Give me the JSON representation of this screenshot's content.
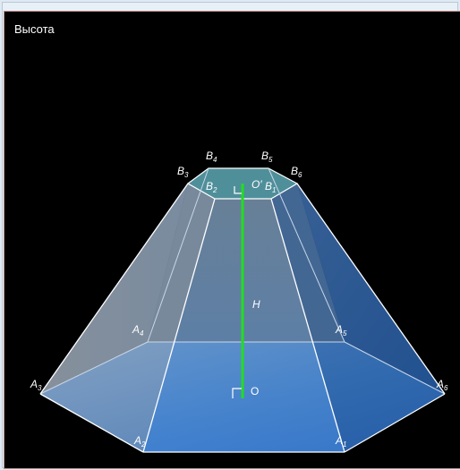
{
  "panel": {
    "title": "Высота"
  },
  "labels": {
    "B4": {
      "base": "B",
      "sub": "4"
    },
    "B5": {
      "base": "B",
      "sub": "5"
    },
    "B3": {
      "base": "B",
      "sub": "3"
    },
    "B6": {
      "base": "B",
      "sub": "6"
    },
    "B2": {
      "base": "B",
      "sub": "2"
    },
    "B1": {
      "base": "B",
      "sub": "1"
    },
    "Oprime": "O′",
    "H": "H",
    "O": "O",
    "A4": {
      "base": "A",
      "sub": "4"
    },
    "A5": {
      "base": "A",
      "sub": "5"
    },
    "A3": {
      "base": "A",
      "sub": "3"
    },
    "A6": {
      "base": "A",
      "sub": "6"
    },
    "A2": {
      "base": "A",
      "sub": "2"
    },
    "A1": {
      "base": "A",
      "sub": "1"
    }
  },
  "colors": {
    "background": "#000000",
    "height_line": "#22dd22",
    "base_fill": "#3c86d8",
    "top_fill": "#4f8f9a"
  }
}
